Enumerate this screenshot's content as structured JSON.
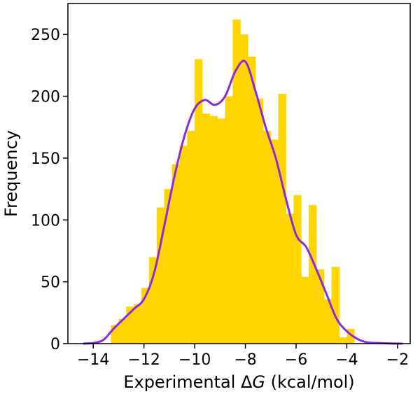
{
  "chart_data": {
    "type": "bar",
    "xlabel": "Experimental ΔG (kcal/mol)",
    "xlabel_prefix": "Experimental Δ",
    "xlabel_italic": "G",
    "xlabel_suffix": " (kcal/mol)",
    "ylabel": "Frequency",
    "xlim": [
      -15.0,
      -1.5
    ],
    "ylim": [
      0,
      275
    ],
    "xticks": [
      -14,
      -12,
      -10,
      -8,
      -6,
      -4,
      -2
    ],
    "xtick_labels": [
      "−14",
      "−12",
      "−10",
      "−8",
      "−6",
      "−4",
      "−2"
    ],
    "yticks": [
      0,
      50,
      100,
      150,
      200,
      250
    ],
    "ytick_labels": [
      "0",
      "50",
      "100",
      "150",
      "200",
      "250"
    ],
    "histogram": {
      "color": "#ffd500",
      "bin_edges": [
        -13.3,
        -13.0,
        -12.7,
        -12.4,
        -12.1,
        -11.8,
        -11.5,
        -11.2,
        -10.9,
        -10.6,
        -10.3,
        -10.0,
        -9.7,
        -9.4,
        -9.1,
        -8.8,
        -8.5,
        -8.2,
        -7.9,
        -7.6,
        -7.3,
        -7.0,
        -6.7,
        -6.4,
        -6.1,
        -5.8,
        -5.5,
        -5.2,
        -4.9,
        -4.6,
        -4.3,
        -4.0,
        -3.7
      ],
      "counts": [
        15,
        20,
        30,
        32,
        45,
        70,
        110,
        125,
        145,
        160,
        172,
        230,
        186,
        184,
        182,
        200,
        262,
        250,
        232,
        198,
        172,
        165,
        202,
        105,
        120,
        54,
        112,
        60,
        36,
        62,
        5,
        12
      ]
    },
    "kde": {
      "color": "#8a2be2",
      "x": [
        -14.4,
        -14.0,
        -13.6,
        -13.2,
        -12.8,
        -12.4,
        -12.0,
        -11.6,
        -11.2,
        -10.8,
        -10.4,
        -10.0,
        -9.6,
        -9.2,
        -8.8,
        -8.4,
        -8.0,
        -7.6,
        -7.2,
        -6.8,
        -6.4,
        -6.0,
        -5.6,
        -5.2,
        -4.8,
        -4.4,
        -4.0,
        -3.6,
        -3.2,
        -2.8,
        -2.4,
        -1.8
      ],
      "y": [
        0,
        0.5,
        3,
        12,
        20,
        28,
        36,
        57,
        95,
        135,
        168,
        190,
        197,
        193,
        200,
        220,
        228,
        204,
        175,
        150,
        117,
        88,
        78,
        60,
        40,
        20,
        10,
        4,
        1,
        0.5,
        0.2,
        0
      ]
    }
  }
}
